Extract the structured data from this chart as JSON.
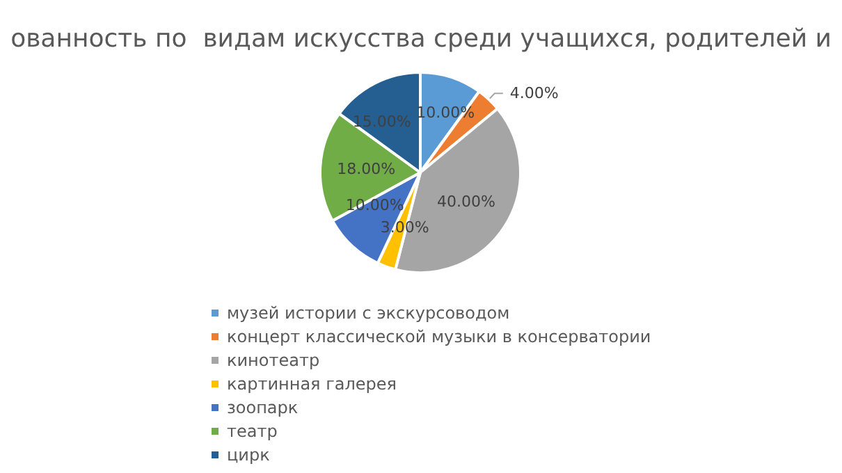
{
  "chart_data": {
    "type": "pie",
    "title": "ованность по  видам искусства среди учащихся, родителей и",
    "categories": [
      "музей истории с экскурсоводом",
      "концерт классической музыки в консерватории",
      "кинотеатр",
      "картинная галерея",
      "зоопарк",
      "театр",
      "цирк"
    ],
    "values": [
      10,
      4,
      40,
      3,
      10,
      18,
      15
    ],
    "colors": [
      "#5b9bd5",
      "#ed7d31",
      "#a5a5a5",
      "#ffc000",
      "#4472c4",
      "#70ad47",
      "#255e91"
    ],
    "value_labels": [
      "10.00%",
      "4.00%",
      "40.00%",
      "3.00%",
      "10.00%",
      "18.00%",
      "15.00%"
    ],
    "legend": "bottom"
  }
}
